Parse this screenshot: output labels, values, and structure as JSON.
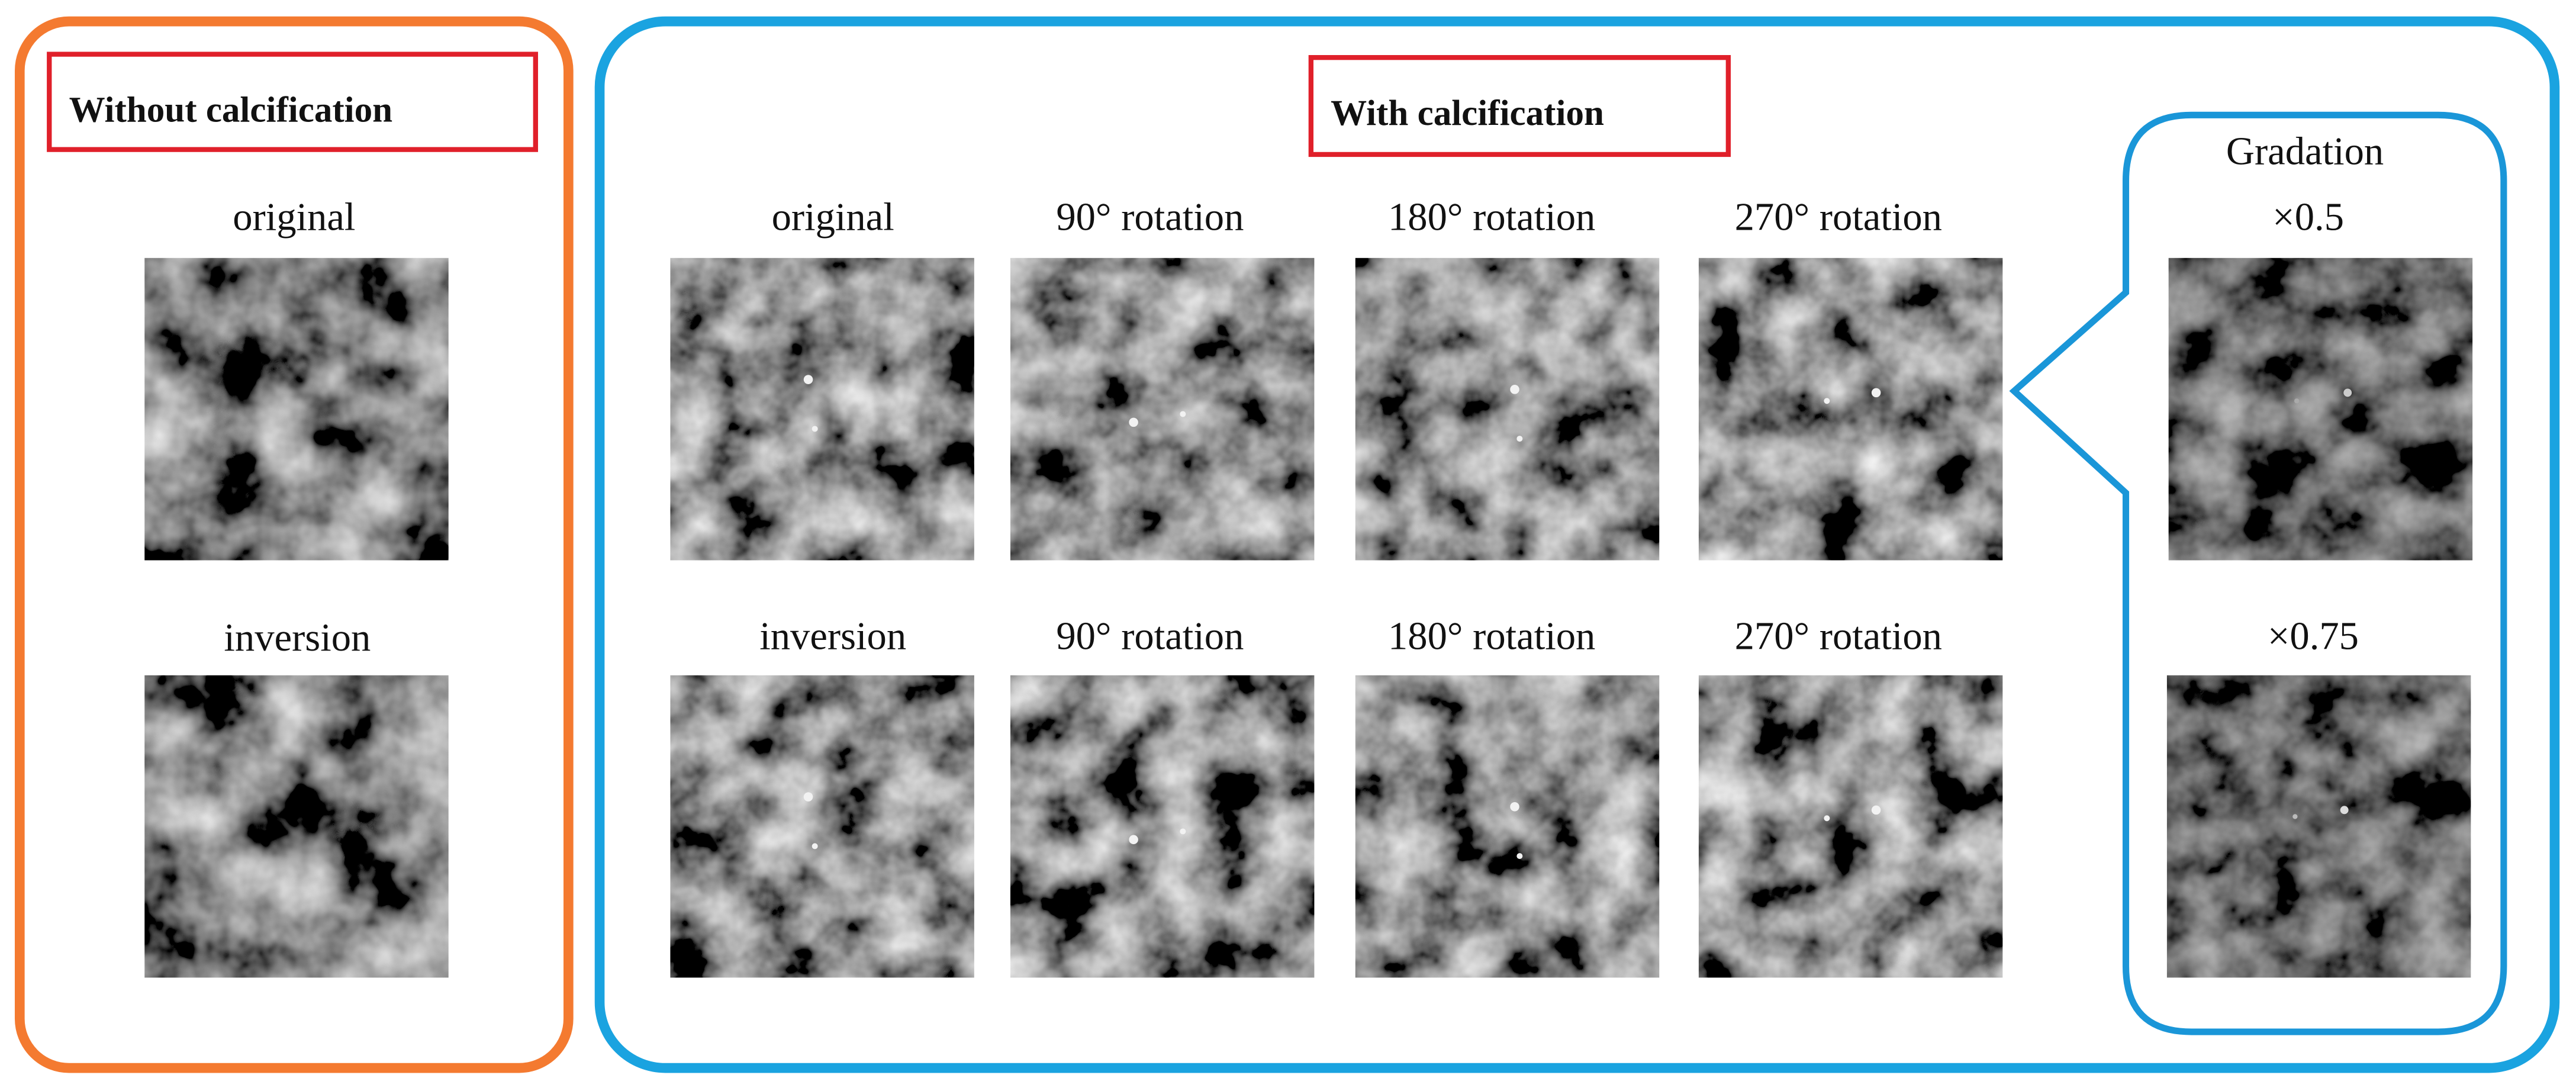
{
  "left_panel": {
    "title": "Without calcification",
    "labels": [
      "original",
      "inversion"
    ]
  },
  "right_panel": {
    "title": "With calcification",
    "rows": [
      [
        "original",
        "90° rotation",
        "180° rotation",
        "270° rotation"
      ],
      [
        "inversion",
        "90° rotation",
        "180° rotation",
        "270° rotation"
      ]
    ]
  },
  "gradation": {
    "title": "Gradation",
    "labels": [
      "×0.5",
      "×0.75"
    ]
  }
}
